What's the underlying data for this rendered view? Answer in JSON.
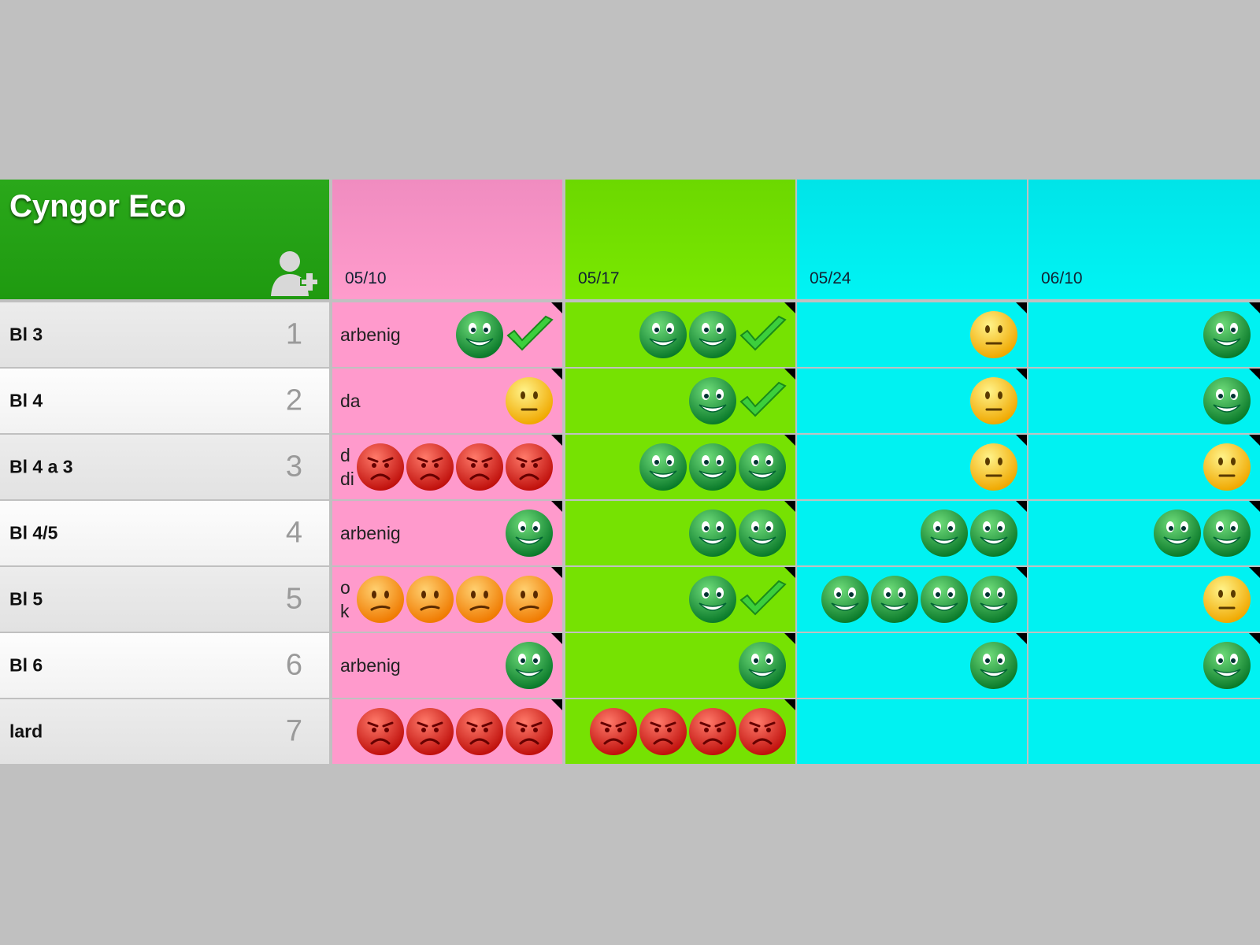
{
  "header": {
    "title": "Cyngor Eco",
    "dates": [
      "05/10",
      "05/17",
      "05/24",
      "06/10"
    ]
  },
  "rows": [
    {
      "name": "Bl 3",
      "number": "1",
      "notes": [
        "arbenig",
        null,
        null,
        null
      ]
    },
    {
      "name": "Bl 4",
      "number": "2",
      "notes": [
        "da",
        null,
        null,
        null
      ]
    },
    {
      "name": "Bl 4 a 3",
      "number": "3",
      "notes": [
        "d\ndi",
        null,
        null,
        null
      ]
    },
    {
      "name": "Bl 4/5",
      "number": "4",
      "notes": [
        "arbenig",
        null,
        null,
        null
      ]
    },
    {
      "name": "Bl 5",
      "number": "5",
      "notes": [
        "o\nk",
        null,
        null,
        null
      ]
    },
    {
      "name": "Bl 6",
      "number": "6",
      "notes": [
        "arbenig",
        null,
        null,
        null
      ]
    },
    {
      "name": "lard",
      "number": "7",
      "notes": [
        null,
        null,
        null,
        null
      ]
    }
  ]
}
